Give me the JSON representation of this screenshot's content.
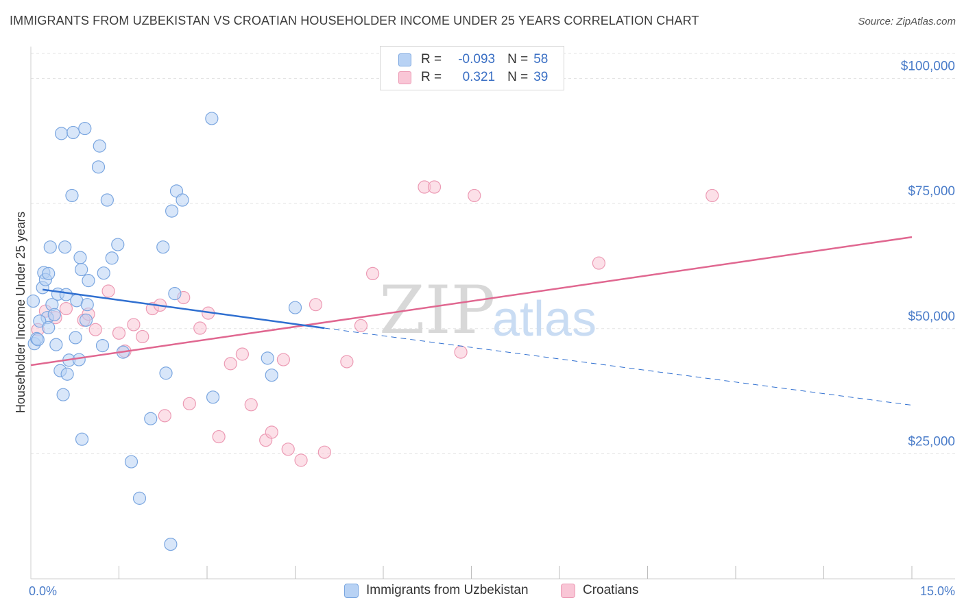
{
  "title": "IMMIGRANTS FROM UZBEKISTAN VS CROATIAN HOUSEHOLDER INCOME UNDER 25 YEARS CORRELATION CHART",
  "source": "Source: ZipAtlas.com",
  "watermark": {
    "zip": "ZIP",
    "atlas": "atlas"
  },
  "legend": {
    "rows": [
      {
        "r_label": "R =",
        "r_value": "-0.093",
        "n_label": "N =",
        "n_value": "58"
      },
      {
        "r_label": "R =",
        "r_value": "0.321",
        "n_label": "N =",
        "n_value": "39"
      }
    ]
  },
  "bottom_legend": [
    "Immigrants from Uzbekistan",
    "Croatians"
  ],
  "colors": {
    "uzbek_fill": "#b8d2f4",
    "uzbek_stroke": "#7aa6e0",
    "uzbek_line": "#2f6fd0",
    "croat_fill": "#f9c6d6",
    "croat_stroke": "#ec9ab4",
    "croat_line": "#e06790",
    "tick_label": "#4a7cc9"
  },
  "chart_data": {
    "type": "scatter",
    "title": "IMMIGRANTS FROM UZBEKISTAN VS CROATIAN HOUSEHOLDER INCOME UNDER 25 YEARS CORRELATION CHART",
    "xlabel": "",
    "ylabel": "Householder Income Under 25 years",
    "xlim": [
      0,
      15
    ],
    "ylim": [
      0,
      105000
    ],
    "x_tick_labels": [
      "0.0%",
      "15.0%"
    ],
    "y_ticks": [
      25000,
      50000,
      75000,
      100000
    ],
    "y_tick_labels": [
      "$25,000",
      "$50,000",
      "$75,000",
      "$100,000"
    ],
    "grid": true,
    "legend_position": "top-center",
    "series": [
      {
        "name": "Immigrants from Uzbekistan",
        "points": [
          [
            0.04,
            55500
          ],
          [
            0.06,
            47000
          ],
          [
            0.1,
            48000
          ],
          [
            0.12,
            47800
          ],
          [
            0.2,
            58200
          ],
          [
            0.22,
            61200
          ],
          [
            0.25,
            59800
          ],
          [
            0.28,
            52200
          ],
          [
            0.3,
            61000
          ],
          [
            0.33,
            66300
          ],
          [
            0.36,
            54800
          ],
          [
            0.4,
            52800
          ],
          [
            0.43,
            46800
          ],
          [
            0.46,
            56900
          ],
          [
            0.5,
            41600
          ],
          [
            0.52,
            89000
          ],
          [
            0.55,
            36800
          ],
          [
            0.58,
            66300
          ],
          [
            0.6,
            56800
          ],
          [
            0.62,
            40900
          ],
          [
            0.65,
            43700
          ],
          [
            0.7,
            76600
          ],
          [
            0.72,
            89200
          ],
          [
            0.76,
            48200
          ],
          [
            0.78,
            55600
          ],
          [
            0.82,
            43800
          ],
          [
            0.84,
            64200
          ],
          [
            0.86,
            61800
          ],
          [
            0.87,
            27900
          ],
          [
            0.92,
            90000
          ],
          [
            0.94,
            51700
          ],
          [
            0.96,
            54800
          ],
          [
            0.98,
            59600
          ],
          [
            1.15,
            82300
          ],
          [
            1.17,
            86500
          ],
          [
            1.22,
            46600
          ],
          [
            1.24,
            61100
          ],
          [
            1.3,
            75700
          ],
          [
            1.38,
            64100
          ],
          [
            1.48,
            66800
          ],
          [
            1.57,
            45300
          ],
          [
            1.71,
            23400
          ],
          [
            1.85,
            16100
          ],
          [
            2.04,
            32000
          ],
          [
            2.25,
            66300
          ],
          [
            2.3,
            41100
          ],
          [
            2.38,
            6900
          ],
          [
            2.4,
            73500
          ],
          [
            2.45,
            57000
          ],
          [
            2.48,
            77500
          ],
          [
            2.58,
            75700
          ],
          [
            3.08,
            92000
          ],
          [
            3.1,
            36300
          ],
          [
            4.03,
            44100
          ],
          [
            4.1,
            40700
          ],
          [
            4.5,
            54200
          ],
          [
            0.15,
            51500
          ],
          [
            0.3,
            50200
          ]
        ],
        "trend": {
          "x_start": 0.2,
          "y_start": 57800,
          "x_solid_end": 5.0,
          "y_solid_end": 50100,
          "x_dash_end": 15.0,
          "y_dash_end": 34700
        }
      },
      {
        "name": "Croatians",
        "points": [
          [
            0.12,
            49800
          ],
          [
            0.25,
            53500
          ],
          [
            0.42,
            52200
          ],
          [
            0.6,
            54000
          ],
          [
            0.9,
            51700
          ],
          [
            0.98,
            52900
          ],
          [
            1.1,
            49800
          ],
          [
            1.32,
            57500
          ],
          [
            1.5,
            49100
          ],
          [
            1.6,
            45500
          ],
          [
            1.75,
            50800
          ],
          [
            1.9,
            48400
          ],
          [
            2.07,
            54000
          ],
          [
            2.2,
            54700
          ],
          [
            2.28,
            32600
          ],
          [
            2.6,
            56200
          ],
          [
            2.7,
            35000
          ],
          [
            2.88,
            50100
          ],
          [
            3.02,
            53100
          ],
          [
            3.2,
            28400
          ],
          [
            3.4,
            43000
          ],
          [
            3.6,
            44900
          ],
          [
            3.75,
            34800
          ],
          [
            4.0,
            27700
          ],
          [
            4.1,
            29300
          ],
          [
            4.3,
            43800
          ],
          [
            4.38,
            25900
          ],
          [
            4.6,
            23700
          ],
          [
            4.85,
            54800
          ],
          [
            5.0,
            25300
          ],
          [
            5.38,
            43400
          ],
          [
            5.62,
            50600
          ],
          [
            5.82,
            61000
          ],
          [
            6.7,
            78300
          ],
          [
            6.87,
            78300
          ],
          [
            7.32,
            45300
          ],
          [
            7.55,
            76600
          ],
          [
            9.67,
            63100
          ],
          [
            11.6,
            76600
          ]
        ],
        "trend": {
          "x_start": 0.0,
          "y_start": 42700,
          "x_end": 15.0,
          "y_end": 68300
        }
      }
    ]
  }
}
